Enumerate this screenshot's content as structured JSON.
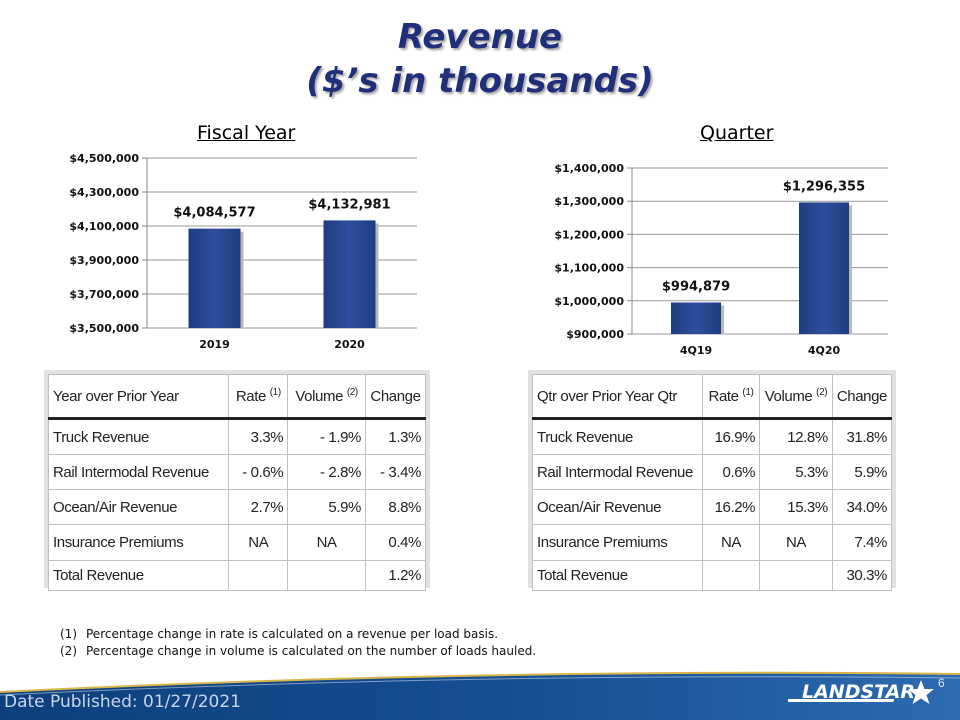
{
  "title": {
    "line1": "Revenue",
    "line2": "($’s in thousands)"
  },
  "chart_data": [
    {
      "type": "bar",
      "title": "Fiscal Year",
      "categories": [
        "2019",
        "2020"
      ],
      "values": [
        4084577,
        4132981
      ],
      "value_labels": [
        "$4,084,577",
        "$4,132,981"
      ],
      "ylim": [
        3500000,
        4500000
      ],
      "yticks": [
        3500000,
        3700000,
        3900000,
        4100000,
        4300000,
        4500000
      ],
      "ytick_labels": [
        "$3,500,000",
        "$3,700,000",
        "$3,900,000",
        "$4,100,000",
        "$4,300,000",
        "$4,500,000"
      ],
      "grid": true,
      "bar_color": "#2e4f9e"
    },
    {
      "type": "bar",
      "title": "Quarter",
      "categories": [
        "4Q19",
        "4Q20"
      ],
      "values": [
        994879,
        1296355
      ],
      "value_labels": [
        "$994,879",
        "$1,296,355"
      ],
      "ylim": [
        900000,
        1400000
      ],
      "yticks": [
        900000,
        1000000,
        1100000,
        1200000,
        1300000,
        1400000
      ],
      "ytick_labels": [
        "$900,000",
        "$1,000,000",
        "$1,100,000",
        "$1,200,000",
        "$1,300,000",
        "$1,400,000"
      ],
      "grid": true,
      "bar_color": "#2e4f9e"
    }
  ],
  "annual_table": {
    "headers": [
      "Year over Prior Year",
      "Rate",
      "Volume",
      "Change"
    ],
    "header_notes": [
      "",
      "(1)",
      "(2)",
      ""
    ],
    "rows": [
      [
        "Truck Revenue",
        "3.3%",
        "- 1.9%",
        "1.3%"
      ],
      [
        "Rail Intermodal Revenue",
        "- 0.6%",
        "- 2.8%",
        "- 3.4%"
      ],
      [
        "Ocean/Air Revenue",
        "2.7%",
        "5.9%",
        "8.8%"
      ],
      [
        "Insurance Premiums",
        "NA",
        "NA",
        "0.4%"
      ],
      [
        "Total Revenue",
        "",
        "",
        "1.2%"
      ]
    ]
  },
  "quarter_table": {
    "headers": [
      "Qtr over Prior Year Qtr",
      "Rate",
      "Volume",
      "Change"
    ],
    "header_notes": [
      "",
      "(1)",
      "(2)",
      ""
    ],
    "rows": [
      [
        "Truck Revenue",
        "16.9%",
        "12.8%",
        "31.8%"
      ],
      [
        "Rail Intermodal Revenue",
        "0.6%",
        "5.3%",
        "5.9%"
      ],
      [
        "Ocean/Air Revenue",
        "16.2%",
        "15.3%",
        "34.0%"
      ],
      [
        "Insurance Premiums",
        "NA",
        "NA",
        "7.4%"
      ],
      [
        "Total Revenue",
        "",
        "",
        "30.3%"
      ]
    ]
  },
  "footnotes": [
    {
      "num": "(1)",
      "text": "Percentage change in rate is calculated on a revenue per load basis."
    },
    {
      "num": "(2)",
      "text": "Percentage change in volume is calculated on the number of loads hauled."
    }
  ],
  "footer": {
    "date_published": "Date Published:  01/27/2021",
    "page_number": "6",
    "logo_text": "LANDSTAR",
    "colors": {
      "band_dark": "#0d3f7e",
      "band_light": "#2d6bb0",
      "gold": "#d7b64a"
    }
  }
}
